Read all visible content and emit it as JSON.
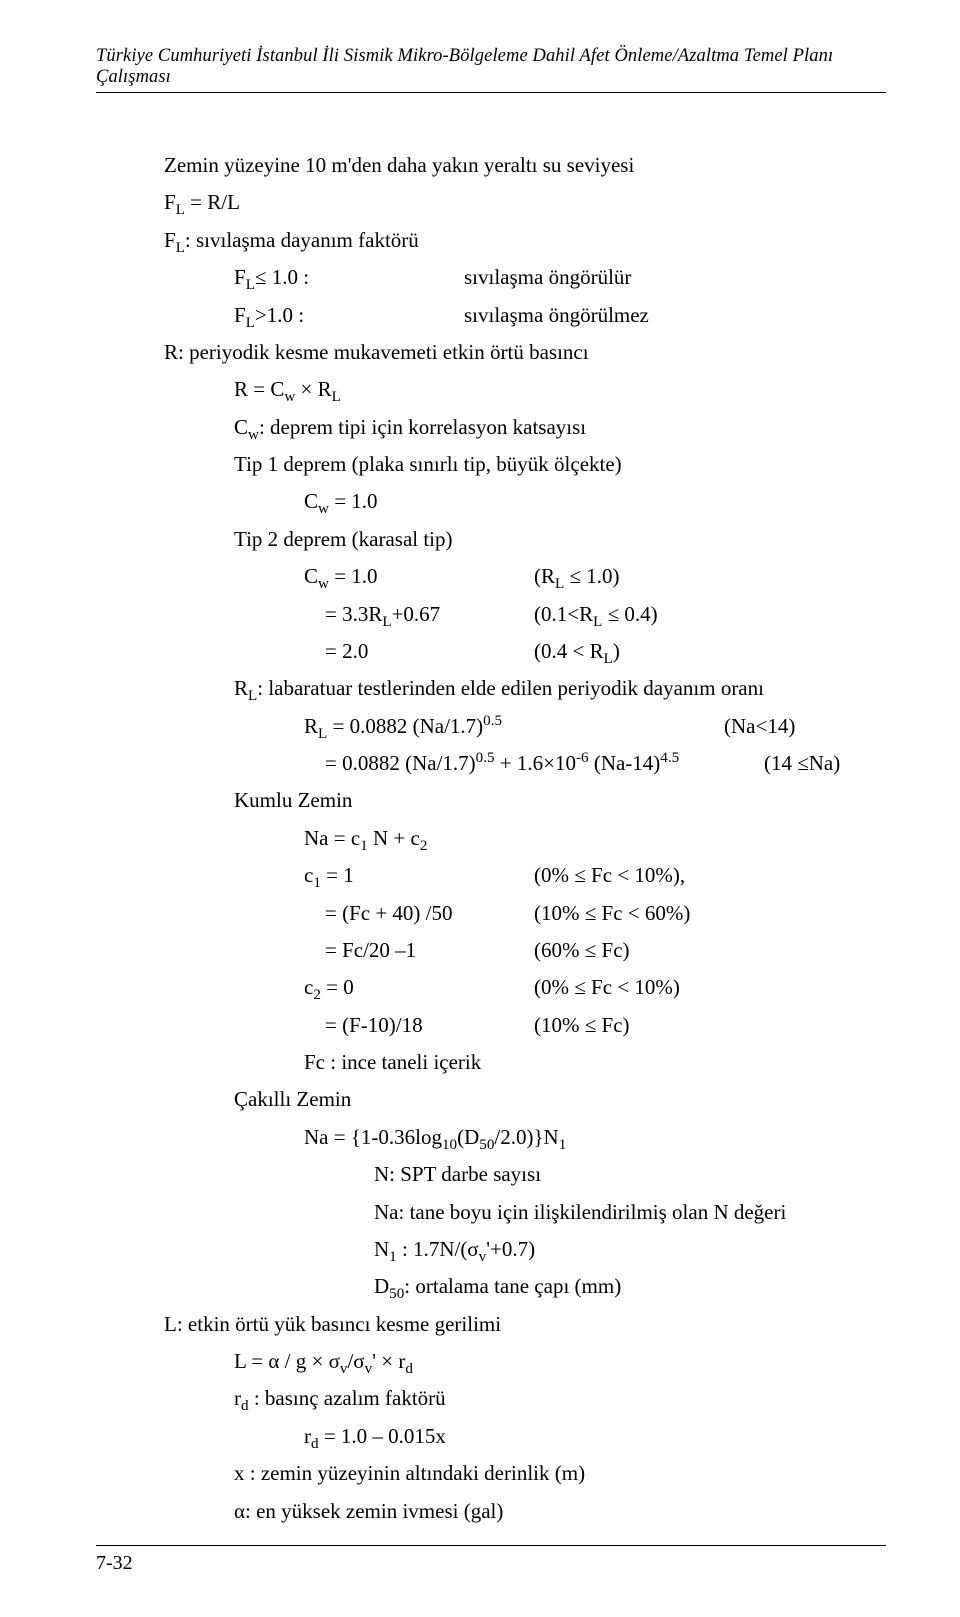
{
  "header": "Türkiye Cumhuriyeti İstanbul İli Sismik Mikro-Bölgeleme Dahil Afet Önleme/Azaltma Temel Planı Çalışması",
  "lines": {
    "l1": "Zemin yüzeyine 10 m'den daha yakın yeraltı su seviyesi",
    "l3": ": sıvılaşma dayanım faktörü",
    "l4a": "≤ 1.0 :",
    "l4b": "sıvılaşma öngörülür",
    "l5a": ">1.0 :",
    "l5b": "sıvılaşma öngörülmez",
    "l6": "R: periyodik kesme mukavemeti etkin örtü  basıncı",
    "l8": ": deprem tipi için korrelasyon katsayısı",
    "l9": "Tip 1 deprem (plaka sınırlı tip, büyük ölçekte)",
    "l11": "Tip 2 deprem (karasal tip)",
    "cw10": " = 1.0",
    "rl10": " ≤ 1.0)",
    "r2a": "= 3.3R",
    "r2a2": "+0.67",
    "r2b": "(0.1<R",
    "r2b2": " ≤ 0.4)",
    "r3a": "= 2.0",
    "r3b": "(0.4 < R",
    "l15": ": labaratuar testlerinden elde edilen periyodik dayanım oranı",
    "rla": " = 0.0882  (Na/1.7)",
    "rlaexp": "0.5",
    "rlb": "(Na<14)",
    "rl2a": "= 0.0882  (Na/1.7)",
    "rl2b": " + 1.6×10",
    "rl2c": " (Na-14)",
    "rl2exp": "4.5",
    "rl2d": "(14 ≤Na)",
    "kumlu": "Kumlu Zemin",
    "nac": "Na = c",
    "nac2": " N + c",
    "c1a": "  = 1",
    "c1b": "(0% ≤ Fc < 10%),",
    "c1c": "=  (Fc + 40) /50",
    "c1d": "(10% ≤ Fc < 60%)",
    "c1e": "=  Fc/20 –1",
    "c1f": "(60% ≤ Fc)",
    "c2a": "  = 0",
    "c2b": "(0% ≤ Fc < 10%)",
    "c2c": "= (F-10)/18",
    "c2d": "(10% ≤ Fc)",
    "fc": "Fc : ince taneli içerik",
    "cakilli": "Çakıllı Zemin",
    "na2": "Na = {1-0.36log",
    "na2b": "(D",
    "na2c": "/2.0)}N",
    "nspt": "N:  SPT darbe sayısı",
    "natane": "Na: tane boyu için ilişkilendirilmiş olan N değeri",
    "n1a": " : 1.7N/(σ",
    "n1b": "'+0.7)",
    "d50": ": ortalama tane çapı (mm)",
    "letkin": "L: etkin örtü yük basıncı kesme gerilimi",
    "leq": "L = α / g × σ",
    "leq2": "/σ",
    "leq3": "' × r",
    "rd": " : basınç azalım faktörü",
    "rdval": " =  1.0 – 0.015x",
    "xz": "x : zemin yüzeyinin altındaki derinlik (m)",
    "alpha": "α: en yüksek zemin ivmesi (gal)"
  },
  "pagefoot": "7-32"
}
